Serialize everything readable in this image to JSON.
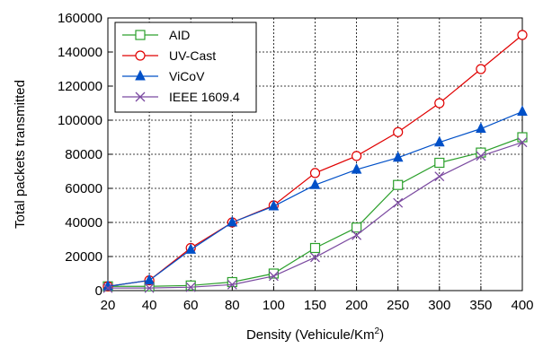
{
  "chart_data": {
    "type": "line",
    "xlabel": "Density (Vehicule/Km",
    "xlabel_sup": "2",
    "xlabel_end": ")",
    "ylabel": "Total packets  transmitted",
    "categories": [
      "20",
      "40",
      "60",
      "80",
      "100",
      "150",
      "200",
      "250",
      "300",
      "350",
      "400"
    ],
    "ylim": [
      0,
      160000
    ],
    "yticks": [
      "0",
      "20000",
      "40000",
      "60000",
      "80000",
      "100000",
      "120000",
      "140000",
      "160000"
    ],
    "grid": true,
    "legend_position": "top-left",
    "series": [
      {
        "name": "AID",
        "color": "#2ca02c",
        "marker": "square-open",
        "values": [
          2500,
          2500,
          3000,
          5000,
          10000,
          25000,
          37000,
          62000,
          75000,
          81000,
          90000
        ]
      },
      {
        "name": "UV-Cast",
        "color": "#e00000",
        "marker": "circle-open",
        "values": [
          2500,
          6000,
          25000,
          40000,
          50000,
          69000,
          79000,
          93000,
          110000,
          130000,
          150000
        ]
      },
      {
        "name": "ViCoV",
        "color": "#0050c8",
        "marker": "triangle-filled",
        "values": [
          2500,
          6000,
          24000,
          40000,
          49500,
          62000,
          71000,
          78000,
          87000,
          95000,
          105000
        ]
      },
      {
        "name": "IEEE 1609.4",
        "color": "#7b4aa0",
        "marker": "x",
        "values": [
          1500,
          1500,
          2000,
          3500,
          8500,
          19500,
          32500,
          51500,
          67000,
          79000,
          87000
        ]
      }
    ]
  }
}
